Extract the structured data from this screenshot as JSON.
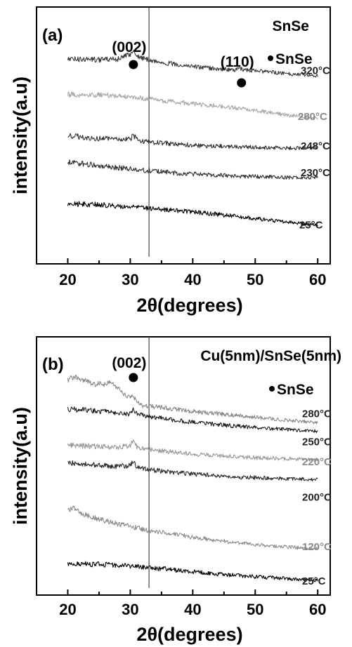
{
  "chart_data": [
    {
      "type": "line",
      "panel_label": "(a)",
      "sample": "SnSe",
      "legend": [
        {
          "marker": "filled-circle",
          "label": "SnSe"
        }
      ],
      "xlabel": "2θ(degrees)",
      "ylabel": "intensity(a.u)",
      "xlim": [
        15,
        62
      ],
      "xticks": [
        "20",
        "30",
        "40",
        "50",
        "60"
      ],
      "peaks": [
        {
          "label": "(002)",
          "x": 30.5
        },
        {
          "label": "(110)",
          "x": 47.8
        }
      ],
      "reference_line_x": 33.0,
      "series": [
        {
          "name": "320°C",
          "color": "#3a3a3a",
          "x": [
            20,
            22,
            24,
            26,
            28,
            29,
            30,
            30.5,
            31,
            32,
            34,
            36,
            38,
            40,
            42,
            44,
            46,
            47.8,
            50,
            52,
            54,
            56,
            58,
            60
          ],
          "y": [
            0.62,
            0.61,
            0.61,
            0.6,
            0.62,
            0.68,
            0.76,
            0.85,
            0.72,
            0.64,
            0.55,
            0.5,
            0.45,
            0.41,
            0.37,
            0.34,
            0.31,
            0.33,
            0.28,
            0.25,
            0.22,
            0.19,
            0.17,
            0.15
          ]
        },
        {
          "name": "280°C",
          "color": "#a8a8a8",
          "x": [
            20,
            22,
            24,
            26,
            28,
            30,
            32,
            34,
            36,
            38,
            40,
            42,
            44,
            46,
            48,
            50,
            52,
            54,
            56,
            58,
            60
          ],
          "y": [
            0.5,
            0.5,
            0.5,
            0.49,
            0.47,
            0.44,
            0.4,
            0.36,
            0.32,
            0.28,
            0.24,
            0.21,
            0.18,
            0.14,
            0.1,
            0.05,
            0.0,
            -0.05,
            -0.09,
            -0.13,
            -0.18
          ]
        },
        {
          "name": "248°C",
          "color": "#2f2f2f",
          "x": [
            20,
            22,
            24,
            26,
            28,
            30,
            30.5,
            31,
            32,
            34,
            36,
            38,
            40,
            42,
            44,
            46,
            48,
            50,
            52,
            54,
            56,
            58,
            60
          ],
          "y": [
            0.4,
            0.36,
            0.33,
            0.3,
            0.28,
            0.3,
            0.4,
            0.3,
            0.24,
            0.2,
            0.17,
            0.14,
            0.12,
            0.1,
            0.09,
            0.08,
            0.07,
            0.06,
            0.05,
            0.05,
            0.04,
            0.04,
            0.04
          ]
        },
        {
          "name": "230°C",
          "color": "#2f2f2f",
          "x": [
            20,
            22,
            24,
            26,
            28,
            30,
            32,
            34,
            36,
            38,
            40,
            42,
            44,
            46,
            48,
            50,
            52,
            54,
            56,
            58,
            60
          ],
          "y": [
            0.55,
            0.5,
            0.46,
            0.42,
            0.38,
            0.35,
            0.31,
            0.28,
            0.25,
            0.22,
            0.2,
            0.18,
            0.17,
            0.15,
            0.14,
            0.13,
            0.12,
            0.11,
            0.1,
            0.1,
            0.1
          ]
        },
        {
          "name": "25°C",
          "color": "#000000",
          "x": [
            20,
            22,
            24,
            26,
            28,
            30,
            32,
            34,
            36,
            38,
            40,
            42,
            44,
            46,
            48,
            50,
            52,
            54,
            56,
            58,
            60
          ],
          "y": [
            0.55,
            0.54,
            0.53,
            0.52,
            0.49,
            0.47,
            0.44,
            0.41,
            0.38,
            0.35,
            0.32,
            0.28,
            0.25,
            0.21,
            0.17,
            0.13,
            0.09,
            0.05,
            0.01,
            -0.03,
            -0.07
          ]
        }
      ]
    },
    {
      "type": "line",
      "panel_label": "(b)",
      "sample": "Cu(5nm)/SnSe(5nm)",
      "legend": [
        {
          "marker": "filled-circle",
          "label": "SnSe"
        }
      ],
      "xlabel": "2θ(degrees)",
      "ylabel": "intensity(a.u)",
      "xlim": [
        15,
        62
      ],
      "xticks": [
        "20",
        "30",
        "40",
        "50",
        "60"
      ],
      "peaks": [
        {
          "label": "(002)",
          "x": 30.5
        }
      ],
      "reference_line_x": 33.0,
      "series": [
        {
          "name": "280°C",
          "color": "#8a8a8a",
          "x": [
            20,
            21,
            22,
            24,
            26,
            27,
            28,
            29,
            30,
            30.5,
            31,
            32,
            34,
            36,
            38,
            40,
            42,
            44,
            46,
            48,
            50,
            52,
            54,
            56,
            58,
            60
          ],
          "y": [
            1.15,
            1.25,
            1.18,
            1.05,
            1.05,
            1.1,
            0.95,
            0.8,
            0.68,
            0.75,
            0.58,
            0.5,
            0.46,
            0.42,
            0.38,
            0.34,
            0.31,
            0.28,
            0.25,
            0.22,
            0.19,
            0.16,
            0.13,
            0.1,
            0.08,
            0.05
          ]
        },
        {
          "name": "250°C",
          "color": "#1a1a1a",
          "x": [
            20,
            22,
            24,
            26,
            28,
            30,
            30.5,
            31,
            32,
            34,
            36,
            38,
            40,
            42,
            44,
            46,
            48,
            50,
            52,
            54,
            56,
            58,
            60
          ],
          "y": [
            0.62,
            0.6,
            0.58,
            0.56,
            0.52,
            0.5,
            0.6,
            0.5,
            0.45,
            0.4,
            0.36,
            0.32,
            0.28,
            0.25,
            0.22,
            0.19,
            0.16,
            0.14,
            0.12,
            0.1,
            0.08,
            0.06,
            0.05
          ]
        },
        {
          "name": "220°C",
          "color": "#9a9a9a",
          "x": [
            20,
            22,
            24,
            26,
            28,
            30,
            30.5,
            31,
            32,
            34,
            36,
            38,
            40,
            42,
            44,
            46,
            48,
            50,
            52,
            54,
            56,
            58,
            60
          ],
          "y": [
            0.55,
            0.54,
            0.53,
            0.52,
            0.5,
            0.55,
            0.7,
            0.52,
            0.46,
            0.42,
            0.39,
            0.36,
            0.33,
            0.31,
            0.29,
            0.27,
            0.25,
            0.23,
            0.22,
            0.21,
            0.2,
            0.19,
            0.18
          ]
        },
        {
          "name": "200°C",
          "color": "#2b2b2b",
          "x": [
            20,
            22,
            24,
            26,
            28,
            30,
            30.5,
            31,
            32,
            34,
            36,
            38,
            40,
            42,
            44,
            46,
            48,
            50,
            52,
            54,
            56,
            58,
            60
          ],
          "y": [
            0.55,
            0.52,
            0.5,
            0.48,
            0.46,
            0.48,
            0.6,
            0.46,
            0.4,
            0.36,
            0.32,
            0.29,
            0.26,
            0.24,
            0.22,
            0.2,
            0.18,
            0.17,
            0.16,
            0.15,
            0.14,
            0.13,
            0.12
          ]
        },
        {
          "name": "120°C",
          "color": "#8c8c8c",
          "x": [
            20,
            21,
            22,
            24,
            26,
            28,
            30,
            32,
            34,
            36,
            38,
            40,
            42,
            44,
            46,
            48,
            50,
            52,
            54,
            56,
            58,
            60
          ],
          "y": [
            1.05,
            1.15,
            1.0,
            0.88,
            0.8,
            0.72,
            0.65,
            0.58,
            0.52,
            0.47,
            0.42,
            0.37,
            0.33,
            0.29,
            0.25,
            0.22,
            0.19,
            0.16,
            0.13,
            0.11,
            0.09,
            0.07
          ]
        },
        {
          "name": "25°C",
          "color": "#000000",
          "x": [
            20,
            22,
            24,
            26,
            28,
            30,
            32,
            34,
            36,
            38,
            40,
            42,
            44,
            46,
            48,
            50,
            52,
            54,
            56,
            58,
            60
          ],
          "y": [
            0.4,
            0.39,
            0.38,
            0.37,
            0.36,
            0.34,
            0.31,
            0.28,
            0.25,
            0.22,
            0.19,
            0.16,
            0.13,
            0.1,
            0.08,
            0.06,
            0.04,
            0.02,
            0.0,
            -0.02,
            -0.04
          ]
        }
      ]
    }
  ]
}
